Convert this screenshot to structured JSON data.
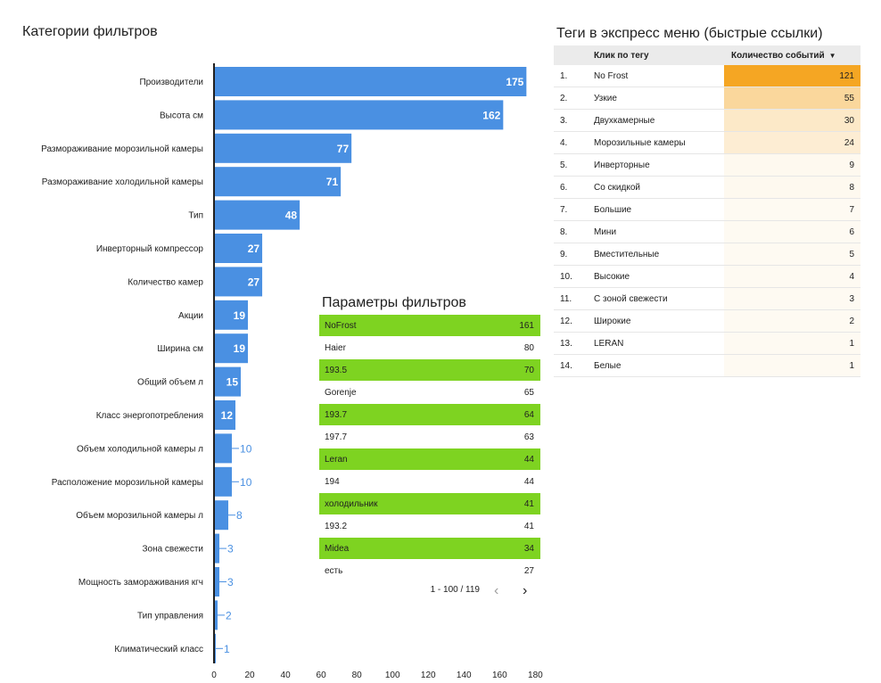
{
  "bar_panel": {
    "title": "Категории фильтров"
  },
  "chart_data": {
    "type": "bar",
    "orientation": "horizontal",
    "title": "Категории фильтров",
    "categories": [
      "Производители",
      "Высота см",
      "Размораживание морозильной камеры",
      "Размораживание холодильной камеры",
      "Тип",
      "Инверторный компрессор",
      "Количество камер",
      "Акции",
      "Ширина см",
      "Общий объем л",
      "Класс энергопотребления",
      "Объем холодильной камеры л",
      "Расположение морозильной камеры",
      "Объем морозильной камеры л",
      "Зона свежести",
      "Мощность замораживания кгч",
      "Тип управления",
      "Климатический класс"
    ],
    "values": [
      175,
      162,
      77,
      71,
      48,
      27,
      27,
      19,
      19,
      15,
      12,
      10,
      10,
      8,
      3,
      3,
      2,
      1
    ],
    "data_labels": [
      "175",
      "162",
      "77",
      "71",
      "48",
      "27",
      "27",
      "19",
      "19",
      "15",
      "12",
      "10",
      "10",
      "8",
      "3",
      "3",
      "2",
      "1"
    ],
    "xlim": [
      0,
      180
    ],
    "x_ticks": [
      "0",
      "20",
      "40",
      "60",
      "80",
      "100",
      "120",
      "140",
      "160",
      "180"
    ],
    "bar_color": "#4a90e2",
    "grid": false
  },
  "params_panel": {
    "title": "Параметры фильтров",
    "rows": [
      {
        "label": "NoFrost",
        "value": "161"
      },
      {
        "label": "Haier",
        "value": "80"
      },
      {
        "label": "193.5",
        "value": "70"
      },
      {
        "label": "Gorenje",
        "value": "65"
      },
      {
        "label": "193.7",
        "value": "64"
      },
      {
        "label": "197.7",
        "value": "63"
      },
      {
        "label": "Leran",
        "value": "44"
      },
      {
        "label": "194",
        "value": "44"
      },
      {
        "label": "холодильник",
        "value": "41"
      },
      {
        "label": "193.2",
        "value": "41"
      },
      {
        "label": "Midea",
        "value": "34"
      },
      {
        "label": "есть",
        "value": "27"
      }
    ],
    "highlight_color": "#7ed321",
    "pagination": "1 - 100 / 119",
    "prev_icon": "chevron-left-icon",
    "next_icon": "chevron-right-icon"
  },
  "tags_panel": {
    "title": "Теги в экспресс меню (быстрые ссылки)",
    "header": {
      "label": "Клик по тегу",
      "value": "Количество событий",
      "sort_icon": "sort-desc-icon"
    },
    "rows": [
      {
        "idx": "1.",
        "label": "No Frost",
        "value": "121",
        "heat": 1.0
      },
      {
        "idx": "2.",
        "label": "Узкие",
        "value": "55",
        "heat": 0.45
      },
      {
        "idx": "3.",
        "label": "Двухкамерные",
        "value": "30",
        "heat": 0.25
      },
      {
        "idx": "4.",
        "label": "Морозильные камеры",
        "value": "24",
        "heat": 0.2
      },
      {
        "idx": "5.",
        "label": "Инверторные",
        "value": "9",
        "heat": 0.07
      },
      {
        "idx": "6.",
        "label": "Со скидкой",
        "value": "8",
        "heat": 0.07
      },
      {
        "idx": "7.",
        "label": "Большие",
        "value": "7",
        "heat": 0.06
      },
      {
        "idx": "8.",
        "label": "Мини",
        "value": "6",
        "heat": 0.05
      },
      {
        "idx": "9.",
        "label": "Вместительные",
        "value": "5",
        "heat": 0.04
      },
      {
        "idx": "10.",
        "label": "Высокие",
        "value": "4",
        "heat": 0.03
      },
      {
        "idx": "11.",
        "label": "С зоной свежести",
        "value": "3",
        "heat": 0.02
      },
      {
        "idx": "12.",
        "label": "Широкие",
        "value": "2",
        "heat": 0.02
      },
      {
        "idx": "13.",
        "label": "LERAN",
        "value": "1",
        "heat": 0.01
      },
      {
        "idx": "14.",
        "label": "Белые",
        "value": "1",
        "heat": 0.01
      }
    ],
    "heat_color": "#f5a623"
  }
}
